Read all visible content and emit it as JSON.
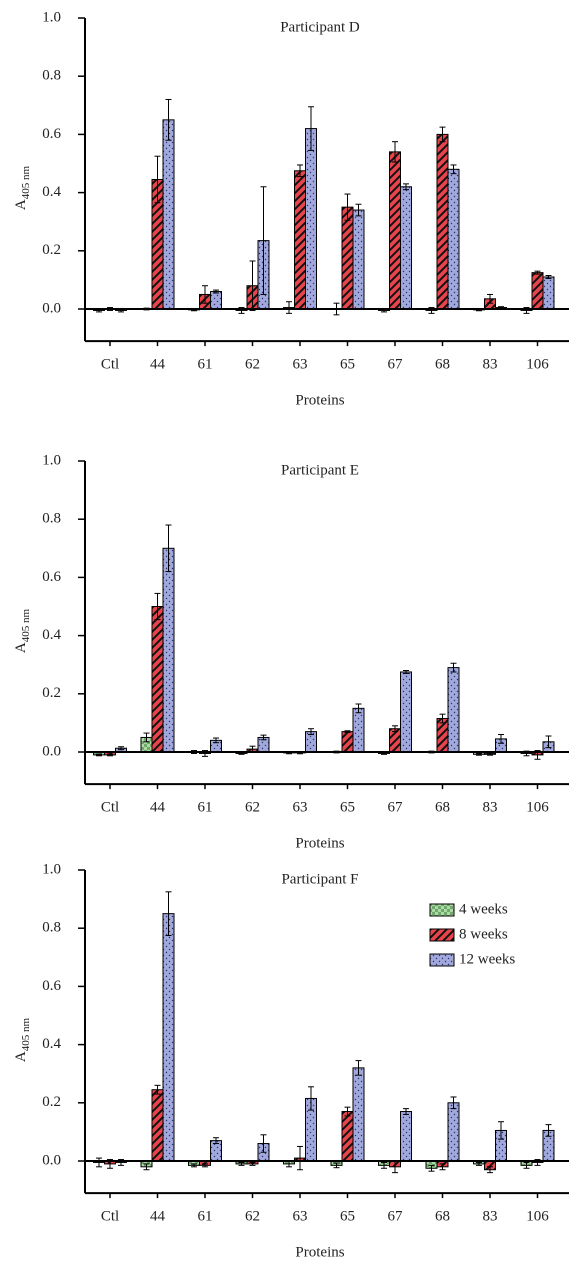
{
  "chart_data": [
    {
      "type": "bar",
      "title": "Participant D",
      "xlabel": "Proteins",
      "ylabel": "A",
      "ylabel_subscript": "405 nm",
      "categories": [
        "Ctl",
        "44",
        "61",
        "62",
        "63",
        "65",
        "67",
        "68",
        "83",
        "106"
      ],
      "ylim": [
        -0.1,
        1.0
      ],
      "yticks": [
        {
          "value": 0,
          "label": "0.0"
        },
        0.2,
        0.4,
        0.6,
        0.8,
        {
          "value": 1,
          "label": "1.0"
        }
      ],
      "series": [
        {
          "color": "#a9dba3",
          "pattern": "checker",
          "values": [
            -0.005,
            0,
            -0.003,
            -0.005,
            0.005,
            0,
            -0.005,
            -0.005,
            -0.003,
            -0.005
          ],
          "errors": [
            0.005,
            0.003,
            0.003,
            0.01,
            0.02,
            0.02,
            0.005,
            0.01,
            0.003,
            0.01
          ]
        },
        {
          "color": "#e8444c",
          "pattern": "hatch",
          "values": [
            0,
            0.445,
            0.05,
            0.08,
            0.475,
            0.35,
            0.54,
            0.6,
            0.035,
            0.125
          ],
          "errors": [
            0.005,
            0.08,
            0.03,
            0.085,
            0.02,
            0.045,
            0.035,
            0.025,
            0.015,
            0.005
          ]
        },
        {
          "color": "#a0a8dc",
          "pattern": "dots",
          "values": [
            -0.005,
            0.65,
            0.06,
            0.235,
            0.62,
            0.34,
            0.42,
            0.48,
            0.005,
            0.11
          ],
          "errors": [
            0.005,
            0.07,
            0.005,
            0.185,
            0.075,
            0.02,
            0.01,
            0.015,
            0.003,
            0.005
          ]
        }
      ]
    },
    {
      "type": "bar",
      "title": "Participant E",
      "xlabel": "Proteins",
      "ylabel": "A",
      "ylabel_subscript": "405 nm",
      "categories": [
        "Ctl",
        "44",
        "61",
        "62",
        "63",
        "65",
        "67",
        "68",
        "83",
        "106"
      ],
      "ylim": [
        -0.1,
        1.0
      ],
      "yticks": [
        {
          "value": 0,
          "label": "0.0"
        },
        0.2,
        0.4,
        0.6,
        0.8,
        {
          "value": 1,
          "label": "1.0"
        }
      ],
      "series": [
        {
          "color": "#a9dba3",
          "pattern": "checker",
          "values": [
            -0.01,
            0.05,
            0,
            -0.005,
            -0.003,
            0,
            -0.005,
            0,
            -0.008,
            -0.005
          ],
          "errors": [
            0.003,
            0.015,
            0.005,
            0.003,
            0.003,
            0.003,
            0.003,
            0.003,
            0.003,
            0.008
          ]
        },
        {
          "color": "#e8444c",
          "pattern": "hatch",
          "values": [
            -0.01,
            0.5,
            -0.005,
            0.01,
            -0.003,
            0.07,
            0.08,
            0.115,
            -0.008,
            -0.01
          ],
          "errors": [
            0.003,
            0.045,
            0.01,
            0.01,
            0.003,
            0.003,
            0.01,
            0.015,
            0.003,
            0.015
          ]
        },
        {
          "color": "#a0a8dc",
          "pattern": "dots",
          "values": [
            0.013,
            0.7,
            0.04,
            0.05,
            0.07,
            0.15,
            0.275,
            0.29,
            0.045,
            0.035
          ],
          "errors": [
            0.005,
            0.08,
            0.008,
            0.008,
            0.01,
            0.015,
            0.005,
            0.015,
            0.015,
            0.02
          ]
        }
      ]
    },
    {
      "type": "bar",
      "title": "Participant F",
      "xlabel": "Proteins",
      "ylabel": "A",
      "ylabel_subscript": "405 nm",
      "categories": [
        "Ctl",
        "44",
        "61",
        "62",
        "63",
        "65",
        "67",
        "68",
        "83",
        "106"
      ],
      "ylim": [
        -0.1,
        1.0
      ],
      "yticks": [
        {
          "value": 0,
          "label": "0.0"
        },
        0.2,
        0.4,
        0.6,
        0.8,
        {
          "value": 1,
          "label": "1.0"
        }
      ],
      "legend": "upper right",
      "series": [
        {
          "name": "4 weeks",
          "color": "#a9dba3",
          "pattern": "checker",
          "values": [
            -0.005,
            -0.02,
            -0.015,
            -0.01,
            -0.01,
            -0.015,
            -0.015,
            -0.025,
            -0.01,
            -0.015
          ],
          "errors": [
            0.015,
            0.01,
            0.005,
            0.005,
            0.01,
            0.008,
            0.01,
            0.01,
            0.005,
            0.01
          ]
        },
        {
          "name": "8 weeks",
          "color": "#e8444c",
          "pattern": "hatch",
          "values": [
            -0.01,
            0.245,
            -0.015,
            -0.01,
            0.01,
            0.17,
            -0.02,
            -0.02,
            -0.03,
            -0.005
          ],
          "errors": [
            0.015,
            0.015,
            0.005,
            0.005,
            0.04,
            0.015,
            0.02,
            0.01,
            0.01,
            0.01
          ]
        },
        {
          "name": "12 weeks",
          "color": "#a0a8dc",
          "pattern": "dots",
          "values": [
            -0.005,
            0.85,
            0.07,
            0.06,
            0.215,
            0.32,
            0.17,
            0.2,
            0.105,
            0.105
          ],
          "errors": [
            0.01,
            0.075,
            0.01,
            0.03,
            0.04,
            0.025,
            0.01,
            0.02,
            0.03,
            0.02
          ]
        }
      ]
    }
  ]
}
